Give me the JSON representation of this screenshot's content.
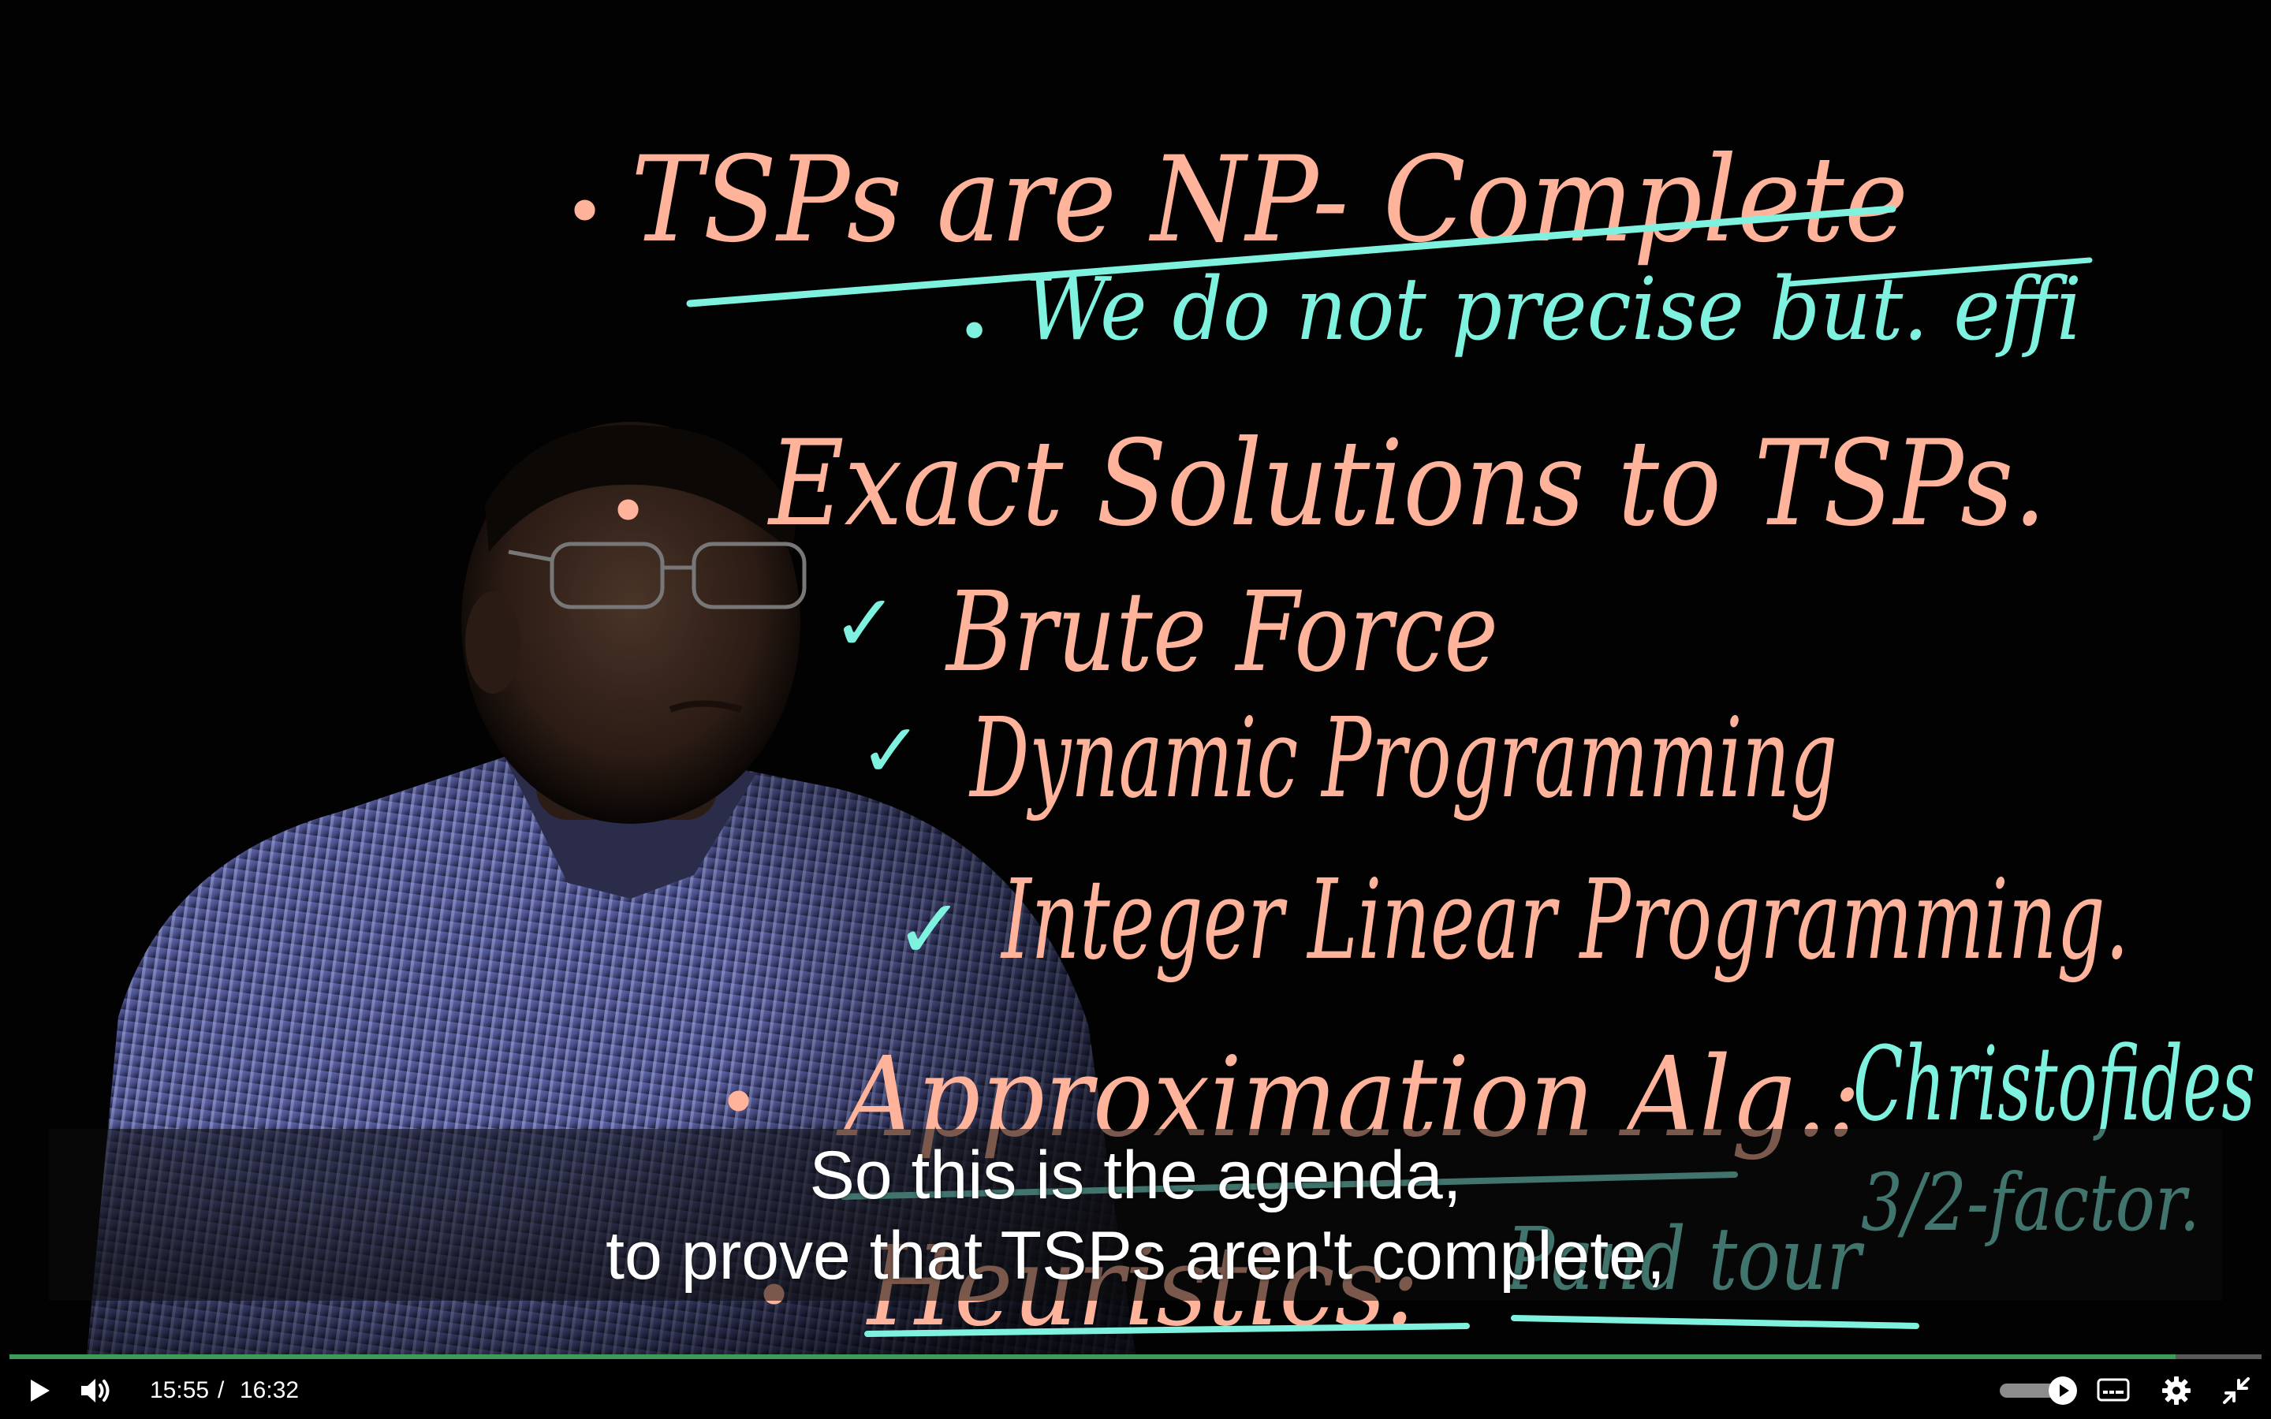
{
  "board": {
    "bullet": "•",
    "line1": "TSPs  are  NP- Complete",
    "line2": "We  do  not  precise  but. effi",
    "line3": "Exact  Solutions  to  TSPs.",
    "item1": "Brute  Force",
    "item2": "Dynamic  Programming",
    "item3": "Integer  Linear  Programming.",
    "line4": "Approximation  Alg.:",
    "line4b": "Christofides",
    "factor": "3/2-factor.",
    "line5": "Heuristics:",
    "line5b": "Pand tour",
    "check": "✓"
  },
  "captions": {
    "line1": "So this is the agenda,",
    "line2": "to prove that TSPs aren't complete,"
  },
  "player": {
    "current_time": "15:55",
    "separator": "/",
    "duration": "16:32",
    "progress_fraction": 0.962,
    "volume_fraction": 1.0,
    "accent_color": "#3f9a5a"
  },
  "colors": {
    "salmon": "#ffb39a",
    "cyan": "#7ef2df"
  },
  "icons": {
    "play": "play-icon",
    "volume": "volume-icon",
    "captions": "captions-icon",
    "settings": "gear-icon",
    "exit_fullscreen": "exit-fullscreen-icon"
  }
}
